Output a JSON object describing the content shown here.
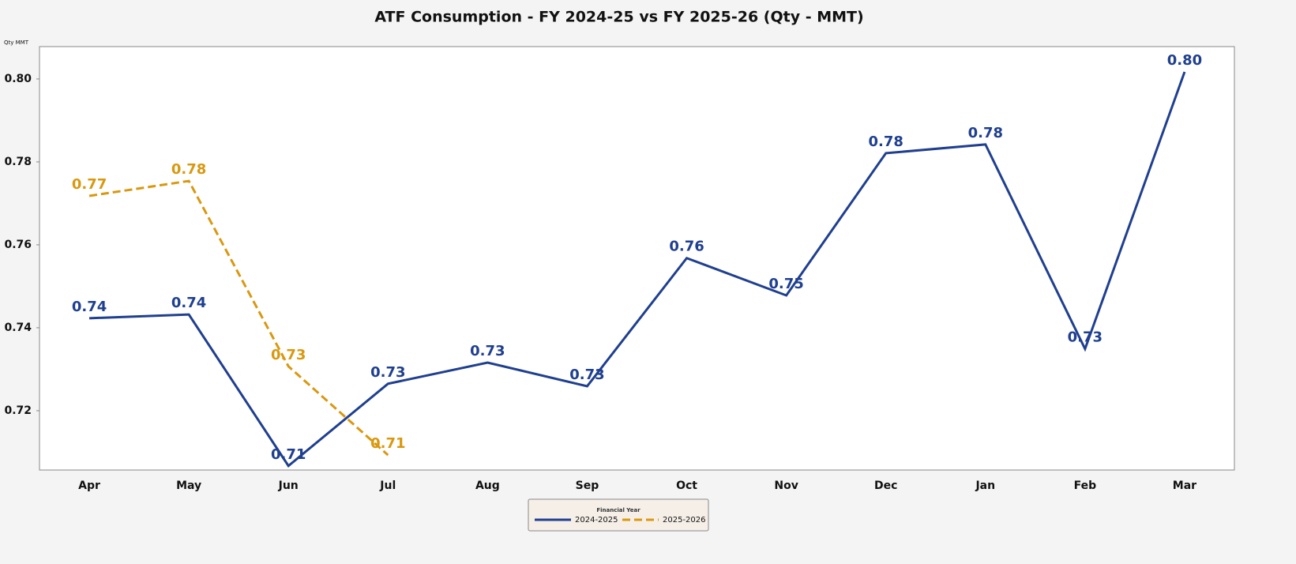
{
  "chart_data": {
    "type": "line",
    "title": "ATF Consumption - FY 2024-25 vs FY 2025-26 (Qty - MMT)",
    "y_label": "Qty MMT",
    "categories": [
      "Apr",
      "May",
      "Jun",
      "Jul",
      "Aug",
      "Sep",
      "Oct",
      "Nov",
      "Dec",
      "Jan",
      "Feb",
      "Mar"
    ],
    "series": [
      {
        "name": "2024-2025",
        "color": "#1f3f8f",
        "dash": false,
        "values": [
          0.7423,
          0.7432,
          0.7067,
          0.7265,
          0.7316,
          0.7259,
          0.7568,
          0.7478,
          0.7821,
          0.7842,
          0.7349,
          0.8017
        ],
        "value_labels": [
          "0.74",
          "0.74",
          "0.71",
          "0.73",
          "0.73",
          "0.73",
          "0.76",
          "0.75",
          "0.78",
          "0.78",
          "0.73",
          "0.80"
        ]
      },
      {
        "name": "2025-2026",
        "color": "#d9980f",
        "dash": true,
        "values": [
          0.7718,
          0.7754,
          0.7307,
          0.7093,
          null,
          null,
          null,
          null,
          null,
          null,
          null,
          null
        ],
        "value_labels": [
          "0.77",
          "0.78",
          "0.73",
          "0.71",
          null,
          null,
          null,
          null,
          null,
          null,
          null,
          null
        ]
      }
    ],
    "ylim": [
      0.7057,
      0.8078
    ],
    "yticks": [
      0.72,
      0.74,
      0.76,
      0.78,
      {
        "value": 0.8,
        "label": "0.80"
      }
    ],
    "grid": false,
    "legend": {
      "title": "Financial Year",
      "position": "bottom"
    }
  }
}
